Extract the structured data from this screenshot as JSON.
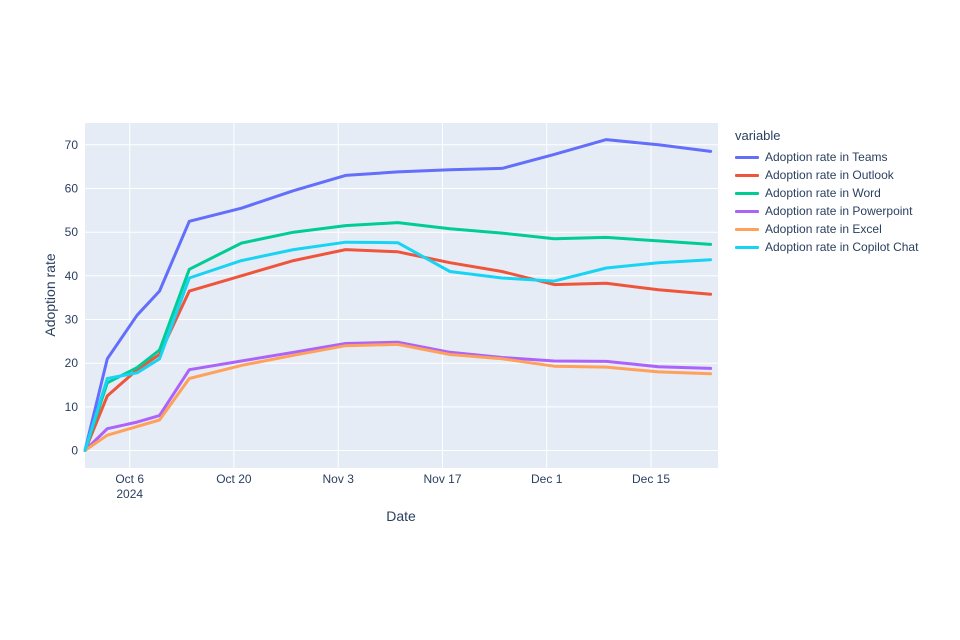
{
  "chart_data": {
    "type": "line",
    "title": "",
    "xlabel": "Date",
    "ylabel": "Adoption rate",
    "legend_title": "variable",
    "plot_bg": "#E5ECF6",
    "grid_color": "#ffffff",
    "text_color": "#2a3f5f",
    "x_range": [
      "2024-09-30",
      "2024-12-24"
    ],
    "y_range": [
      -4,
      75
    ],
    "y_ticks": [
      0,
      10,
      20,
      30,
      40,
      50,
      60,
      70
    ],
    "x_ticks": [
      {
        "date": "2024-10-06",
        "label": "Oct 6",
        "sublabel": "2024"
      },
      {
        "date": "2024-10-20",
        "label": "Oct 20"
      },
      {
        "date": "2024-11-03",
        "label": "Nov 3"
      },
      {
        "date": "2024-11-17",
        "label": "Nov 17"
      },
      {
        "date": "2024-12-01",
        "label": "Dec 1"
      },
      {
        "date": "2024-12-15",
        "label": "Dec 15"
      }
    ],
    "x": [
      "2024-09-30",
      "2024-10-03",
      "2024-10-07",
      "2024-10-10",
      "2024-10-14",
      "2024-10-21",
      "2024-10-28",
      "2024-11-04",
      "2024-11-11",
      "2024-11-18",
      "2024-11-25",
      "2024-12-02",
      "2024-12-09",
      "2024-12-16",
      "2024-12-23"
    ],
    "series": [
      {
        "name": "Adoption rate in Teams",
        "color": "#636EFA",
        "values": [
          0,
          21,
          31,
          36.5,
          52.5,
          55.5,
          59.5,
          63,
          63.8,
          64.3,
          64.6,
          67.8,
          71.2,
          70,
          68.5
        ]
      },
      {
        "name": "Adoption rate in Outlook",
        "color": "#EF553B",
        "values": [
          0,
          12.5,
          18.5,
          22,
          36.5,
          40,
          43.5,
          46,
          45.5,
          43,
          41,
          38,
          38.3,
          36.8,
          35.8
        ]
      },
      {
        "name": "Adoption rate in Word",
        "color": "#00CC96",
        "values": [
          0,
          15.5,
          19,
          23,
          41.5,
          47.5,
          50,
          51.5,
          52.2,
          50.8,
          49.8,
          48.5,
          48.8,
          48,
          47.2
        ]
      },
      {
        "name": "Adoption rate in Powerpoint",
        "color": "#AB63FA",
        "values": [
          0,
          5,
          6.5,
          8,
          18.5,
          20.5,
          22.5,
          24.5,
          24.8,
          22.5,
          21.3,
          20.5,
          20.4,
          19.2,
          18.8
        ]
      },
      {
        "name": "Adoption rate in Excel",
        "color": "#FFA15A",
        "values": [
          0,
          3.5,
          5.5,
          7,
          16.5,
          19.5,
          21.8,
          24,
          24.3,
          22,
          21,
          19.3,
          19.1,
          18,
          17.6
        ]
      },
      {
        "name": "Adoption rate in Copilot Chat",
        "color": "#19D3F3",
        "values": [
          0,
          16.5,
          17.8,
          21,
          39.5,
          43.5,
          46,
          47.7,
          47.6,
          41,
          39.5,
          38.8,
          41.8,
          43,
          43.7
        ]
      }
    ]
  }
}
